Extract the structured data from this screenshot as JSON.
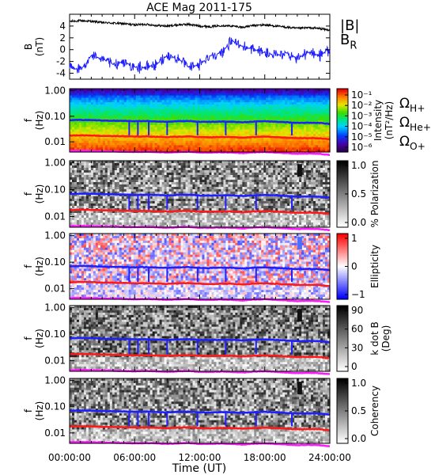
{
  "title": "ACE Mag 2011-175",
  "xlabel": "Time (UT)",
  "xticks": [
    "00:00:00",
    "06:00:00",
    "12:00:00",
    "18:00:00",
    "24:00:00"
  ],
  "colors": {
    "blue": "#1f1fff",
    "red": "#ff1a1a",
    "magenta": "#ff19ff",
    "black": "#000000"
  },
  "chart_data": [
    {
      "type": "line",
      "panel": "B",
      "ylabel": "B",
      "yunit": "(nT)",
      "ylim": [
        -5,
        6
      ],
      "yticks": [
        "4",
        "2",
        "0",
        "-2",
        "-4"
      ],
      "xlim_hours": [
        0,
        24
      ],
      "series": [
        {
          "name": "|B|",
          "color": "#000000",
          "x": [
            0,
            1,
            2,
            3,
            4,
            5,
            6,
            7,
            8,
            9,
            10,
            11,
            12,
            13,
            14,
            15,
            16,
            17,
            18,
            19,
            20,
            21,
            22,
            23,
            24
          ],
          "values": [
            4.8,
            4.9,
            4.8,
            4.6,
            4.5,
            4.4,
            4.2,
            4.3,
            4.1,
            4.0,
            4.2,
            4.3,
            4.0,
            3.9,
            4.1,
            4.0,
            3.8,
            4.1,
            4.2,
            4.0,
            3.8,
            3.6,
            3.7,
            3.6,
            3.3
          ]
        },
        {
          "name": "B_R",
          "label_main": "B",
          "label_sub": "R",
          "color": "#1f1fff",
          "x": [
            0,
            1,
            2,
            3,
            4,
            5,
            6,
            7,
            8,
            9,
            10,
            11,
            12,
            13,
            14,
            15,
            16,
            17,
            18,
            19,
            20,
            21,
            22,
            23,
            24
          ],
          "values": [
            -3.0,
            -3.5,
            -1.0,
            -1.5,
            -2.5,
            -2.0,
            -3.0,
            -3.0,
            -2.5,
            -1.0,
            -1.5,
            -3.0,
            -2.5,
            -1.0,
            -0.5,
            1.5,
            0.5,
            0.0,
            -0.5,
            -1.0,
            -0.5,
            -1.5,
            -0.5,
            -1.0,
            0.0
          ]
        }
      ]
    },
    {
      "type": "heatmap",
      "panel": "Intensity",
      "ylabel": "f",
      "yunit": "(Hz)",
      "yscale": "log",
      "ylim": [
        0.004,
        1.2
      ],
      "yticks": [
        "1.00",
        "0.10",
        "0.01"
      ],
      "colorbar": {
        "label": "Intensity",
        "unit": "(nT²/Hz)",
        "ticks": [
          "10⁻¹",
          "10⁻²",
          "10⁻³",
          "10⁻⁴",
          "10⁻⁵",
          "10⁻⁶"
        ],
        "scale": "rainbow",
        "range_log10": [
          -6.5,
          -0.5
        ]
      },
      "legend": [
        {
          "main": "Ω",
          "sub": "H+",
          "color": "#1f1fff"
        },
        {
          "main": "Ω",
          "sub": "He+",
          "color": "#ff1a1a"
        },
        {
          "main": "Ω",
          "sub": "O+",
          "color": "#ff19ff"
        }
      ]
    },
    {
      "type": "heatmap",
      "panel": "Polarization",
      "ylabel": "f",
      "yunit": "(Hz)",
      "yscale": "log",
      "yticks": [
        "1.00",
        "0.10",
        "0.01"
      ],
      "colorbar": {
        "label": "% Polarization",
        "ticks": [
          "1.0",
          "0.5",
          "0.0"
        ],
        "scale": "gray_inverted",
        "range": [
          0,
          1
        ]
      }
    },
    {
      "type": "heatmap",
      "panel": "Ellipticity",
      "ylabel": "f",
      "yunit": "(Hz)",
      "yscale": "log",
      "yticks": [
        "1.00",
        "0.10",
        "0.01"
      ],
      "colorbar": {
        "label": "Ellipticity",
        "ticks": [
          "1",
          "0",
          "−1"
        ],
        "scale": "red_white_blue",
        "range": [
          -1,
          1
        ]
      }
    },
    {
      "type": "heatmap",
      "panel": "k dot B",
      "ylabel": "f",
      "yunit": "(Hz)",
      "yscale": "log",
      "yticks": [
        "1.00",
        "0.10",
        "0.01"
      ],
      "colorbar": {
        "label": "k dot B",
        "unit": "(Deg)",
        "ticks": [
          "90",
          "60",
          "30",
          "0"
        ],
        "scale": "gray_inverted",
        "range": [
          0,
          90
        ]
      }
    },
    {
      "type": "heatmap",
      "panel": "Coherency",
      "ylabel": "f",
      "yunit": "(Hz)",
      "yscale": "log",
      "yticks": [
        "1.00",
        "0.10",
        "0.01"
      ],
      "colorbar": {
        "label": "Coherency",
        "ticks": [
          "1.0",
          "0.5",
          "0.0"
        ],
        "scale": "gray_inverted",
        "range": [
          0,
          1
        ]
      }
    }
  ],
  "gyro_lines": {
    "x_hours": [
      0,
      1,
      2,
      3,
      4,
      5,
      6,
      7,
      8,
      9,
      10,
      11,
      12,
      13,
      14,
      15,
      16,
      17,
      18,
      19,
      20,
      21,
      22,
      23,
      24
    ],
    "H+": [
      0.07,
      0.072,
      0.071,
      0.068,
      0.067,
      0.066,
      0.064,
      0.065,
      0.063,
      0.061,
      0.064,
      0.065,
      0.061,
      0.06,
      0.062,
      0.061,
      0.058,
      0.062,
      0.064,
      0.061,
      0.058,
      0.055,
      0.056,
      0.055,
      0.05
    ],
    "He+": [
      0.0175,
      0.018,
      0.0178,
      0.017,
      0.0168,
      0.0165,
      0.016,
      0.0163,
      0.0158,
      0.0153,
      0.016,
      0.0163,
      0.0153,
      0.015,
      0.0155,
      0.0153,
      0.0145,
      0.0155,
      0.016,
      0.0153,
      0.0145,
      0.0138,
      0.014,
      0.0138,
      0.0125
    ],
    "O+": [
      0.0044,
      0.0045,
      0.0044,
      0.0043,
      0.0042,
      0.0041,
      0.004,
      0.0041,
      0.004,
      0.0038,
      0.004,
      0.0041,
      0.0038,
      0.0038,
      0.0039,
      0.0038,
      0.0036,
      0.0039,
      0.004,
      0.0038,
      0.0036,
      0.0034,
      0.0035,
      0.0034,
      0.0031
    ]
  }
}
